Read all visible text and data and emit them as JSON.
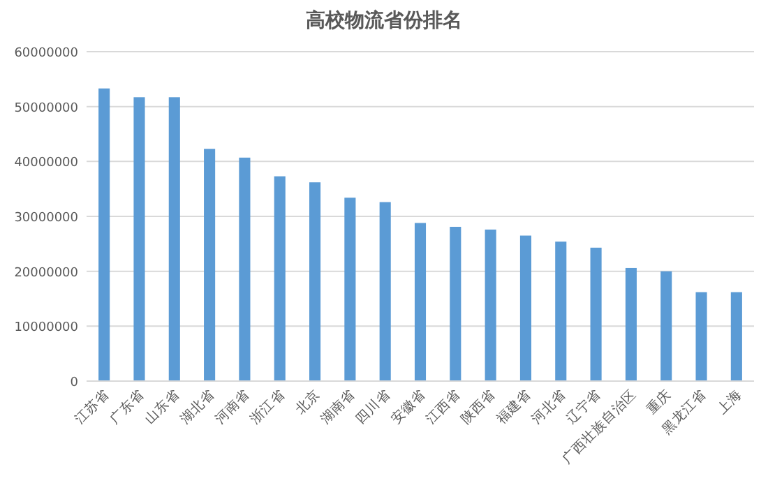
{
  "chart_data": {
    "type": "bar",
    "title": "高校物流省份排名",
    "categories": [
      "江苏省",
      "广东省",
      "山东省",
      "湖北省",
      "河南省",
      "浙江省",
      "北京",
      "湖南省",
      "四川省",
      "安徽省",
      "江西省",
      "陕西省",
      "福建省",
      "河北省",
      "辽宁省",
      "广西壮族自治区",
      "重庆",
      "黑龙江省",
      "上海"
    ],
    "values": [
      53300000,
      51700000,
      51700000,
      42300000,
      40700000,
      37300000,
      36200000,
      33400000,
      32600000,
      28800000,
      28100000,
      27600000,
      26500000,
      25400000,
      24300000,
      20600000,
      20000000,
      16200000,
      16200000
    ],
    "color": "#5b9bd5",
    "ylim": [
      0,
      60000000
    ],
    "yticks": [
      0,
      10000000,
      20000000,
      30000000,
      40000000,
      50000000,
      60000000
    ],
    "grid": "y"
  }
}
